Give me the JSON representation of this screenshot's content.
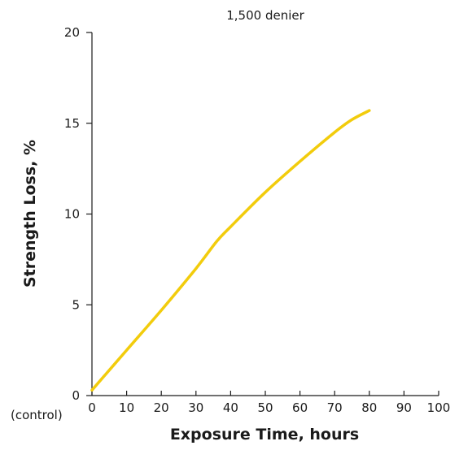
{
  "chart_data": {
    "type": "line",
    "title": "1,500 denier",
    "xlabel": "Exposure Time, hours",
    "ylabel": "Strength Loss, %",
    "x_origin_annotation": "(control)",
    "xlim": [
      0,
      100
    ],
    "ylim": [
      0,
      20
    ],
    "x_ticks": [
      0,
      10,
      20,
      30,
      40,
      50,
      60,
      70,
      80,
      90,
      100
    ],
    "y_ticks": [
      0,
      5,
      10,
      15,
      20
    ],
    "grid": false,
    "legend": "none",
    "series": [
      {
        "color": "#f2cc0c",
        "x": [
          0,
          10,
          20,
          30,
          36,
          40,
          50,
          60,
          70,
          75,
          80
        ],
        "y": [
          0.3,
          2.5,
          4.7,
          7.0,
          8.5,
          9.3,
          11.2,
          12.9,
          14.5,
          15.2,
          15.7
        ]
      }
    ]
  }
}
